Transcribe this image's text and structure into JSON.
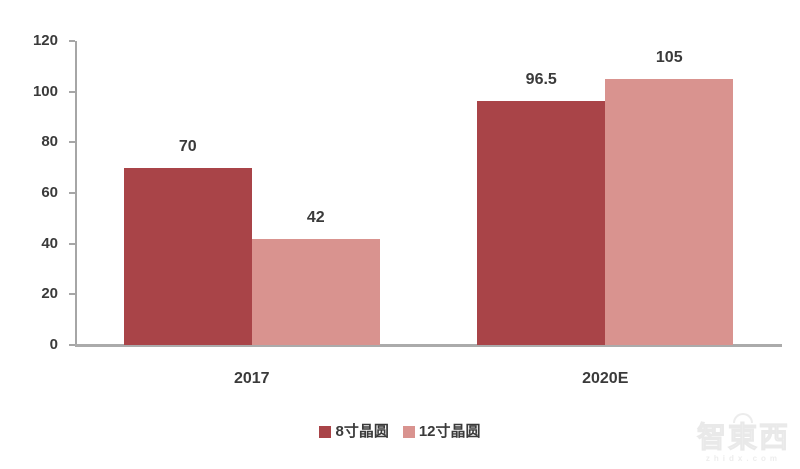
{
  "watermark": {
    "logo": "智東西",
    "domain": "zhidx.com"
  },
  "chart_data": {
    "type": "bar",
    "categories": [
      "2017",
      "2020E"
    ],
    "series": [
      {
        "name": "8寸晶圆",
        "color": "#A94448",
        "values": [
          70,
          96.5
        ],
        "labels": [
          "70",
          "96.5"
        ]
      },
      {
        "name": "12寸晶圆",
        "color": "#D9938F",
        "values": [
          42,
          105
        ],
        "labels": [
          "42",
          "105"
        ]
      }
    ],
    "title": "",
    "xlabel": "",
    "ylabel": "",
    "ylim": [
      0,
      120
    ],
    "yticks": [
      0,
      20,
      40,
      60,
      80,
      100,
      120
    ],
    "grid": false,
    "legend_position": "bottom",
    "colors": {
      "axis": "#a6a6a6",
      "baseline": "#ababab",
      "text": "#3a3a3a"
    }
  }
}
